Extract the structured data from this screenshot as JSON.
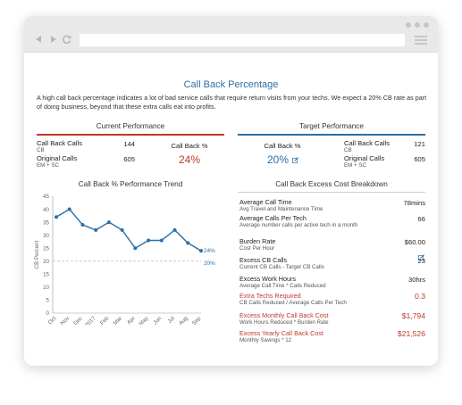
{
  "window": {
    "controls": [
      "back-icon",
      "forward-icon",
      "reload-icon",
      "menu-icon"
    ]
  },
  "page": {
    "title": "Call Back Percentage",
    "intro": "A high call back percentage indicates a lot of bad service calls that require return visits from your techs. We expect a 20% CB rate as part of doing business, beyond that these extra calls eat into profits."
  },
  "current": {
    "heading": "Current Performance",
    "callback_calls_label": "Call Back Calls",
    "callback_calls_sub": "CB",
    "callback_calls_value": "144",
    "original_calls_label": "Original Calls",
    "original_calls_sub": "EM + SC",
    "original_calls_value": "605",
    "callback_pct_label": "Call Back %",
    "callback_pct_value": "24%"
  },
  "target": {
    "heading": "Target Performance",
    "callback_pct_label": "Call Back %",
    "callback_pct_value": "20%",
    "callback_calls_label": "Call Back Calls",
    "callback_calls_sub": "CB",
    "callback_calls_value": "121",
    "original_calls_label": "Original Calls",
    "original_calls_sub": "EM + SC",
    "original_calls_value": "605"
  },
  "breakdown": {
    "heading": "Call Back Excess Cost Breakdown",
    "rows": [
      {
        "label": "Average Call Time",
        "sub": "Avg Travel and Maintenance Time",
        "value": "78mins"
      },
      {
        "label": "Average Calls Per Tech",
        "sub": "Average number calls per active tech in a month",
        "value": "66"
      },
      {
        "label": "Burden Rate",
        "sub": "Cost Per Hour",
        "value": "$60.00"
      },
      {
        "label": "Excess CB Calls",
        "sub": "Current CB Calls - Target CB Calls",
        "value": "23"
      },
      {
        "label": "Excess Work Hours",
        "sub": "Average Call Time * Calls Reduced",
        "value": "30hrs"
      },
      {
        "label": "Extra Techs Required",
        "sub": "CB Calls Reduced / Average Calls Per Tech",
        "value": "0.3"
      },
      {
        "label": "Excess Monthly Call Back Cost",
        "sub": "Work Hours Reduced * Burden Rate",
        "value": "$1,794"
      },
      {
        "label": "Excess Yearly Call Back Cost",
        "sub": "Monthly Savings * 12",
        "value": "$21,526"
      }
    ],
    "red_color": "#c0392b"
  },
  "chart_data": {
    "type": "line",
    "title": "Call Back % Performance Trend",
    "ylabel": "CB Percent",
    "xlabel": "",
    "categories": [
      "Oct",
      "Nov",
      "Dec",
      "2017",
      "Feb",
      "Mar",
      "Apr",
      "May",
      "Jun",
      "Jul",
      "Aug",
      "Sep"
    ],
    "values": [
      37,
      40,
      34,
      32,
      35,
      32,
      25,
      28,
      28,
      32,
      27,
      24
    ],
    "target": 20,
    "series_label": "24%",
    "target_label": "20%",
    "ylim": [
      0,
      45
    ],
    "yticks": [
      0,
      5,
      10,
      15,
      20,
      25,
      30,
      35,
      40,
      45
    ],
    "grid": false,
    "line_color": "#2a6fa8"
  }
}
